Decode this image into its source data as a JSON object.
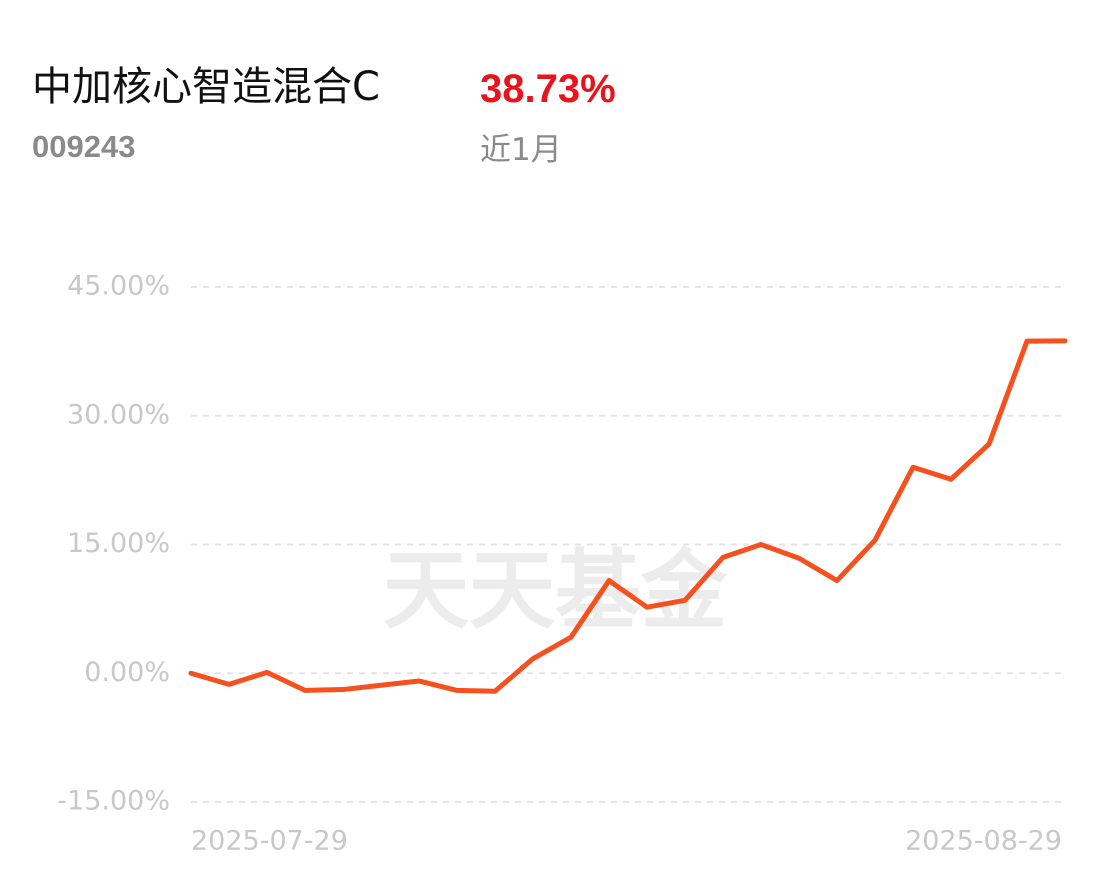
{
  "header": {
    "name": "中加核心智造混合C",
    "return": "38.73%",
    "code": "009243",
    "period": "近1月",
    "watermark": "天天基金"
  },
  "chart_data": {
    "type": "line",
    "categories": [
      "2025-07-29",
      null,
      null,
      null,
      null,
      null,
      null,
      null,
      null,
      null,
      null,
      null,
      null,
      null,
      null,
      null,
      null,
      null,
      null,
      null,
      null,
      null,
      null,
      "2025-08-29"
    ],
    "series": [
      {
        "color": "#f5501e",
        "values": [
          0,
          -1.3,
          0.1,
          -2.0,
          -1.9,
          -1.4,
          -0.9,
          -2.0,
          -2.1,
          1.7,
          4.2,
          10.8,
          7.7,
          8.5,
          13.5,
          15.0,
          13.4,
          10.8,
          15.5,
          24.0,
          22.6,
          26.7,
          38.7,
          38.73
        ]
      }
    ],
    "ylim": [
      -15,
      45
    ],
    "yticks": [
      {
        "value": -15,
        "label": "-15.00%"
      },
      {
        "value": 0,
        "label": "0.00%"
      },
      {
        "value": 15,
        "label": "15.00%"
      },
      {
        "value": 30,
        "label": "30.00%"
      },
      {
        "value": 45,
        "label": "45.00%"
      }
    ],
    "grid": true
  }
}
